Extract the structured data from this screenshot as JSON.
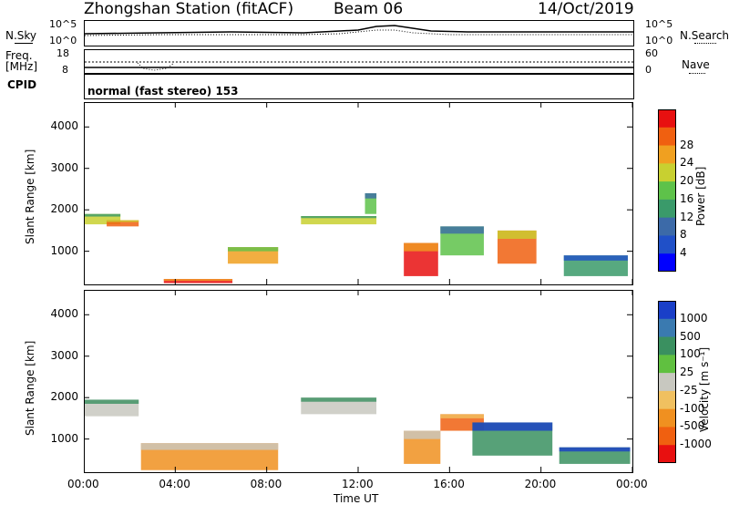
{
  "header": {
    "station": "Zhongshan Station (fitACF)",
    "beam": "Beam 06",
    "date": "14/Oct/2019"
  },
  "noise_panel": {
    "left_label": "N.Sky",
    "left_top_tick": "10^5",
    "left_bottom_tick": "10^0",
    "right_label": "N.Search",
    "right_top_tick": "10^5",
    "right_bottom_tick": "10^0"
  },
  "freq_panel": {
    "left_label_1": "Freq.",
    "left_label_2": "[MHz]",
    "left_top_tick": "18",
    "left_bottom_tick": "8",
    "right_label": "Nave",
    "right_top_tick": "60",
    "right_bottom_tick": "0"
  },
  "cpid": {
    "label": "CPID",
    "mode": "normal (fast stereo) 153"
  },
  "chart_data": [
    {
      "type": "heatmap",
      "name": "power",
      "ylabel": "Slant Range [km]",
      "xlabel": "",
      "x_ticks": [
        "00:00",
        "04:00",
        "08:00",
        "12:00",
        "16:00",
        "20:00",
        "00:00"
      ],
      "y_ticks": [
        1000,
        2000,
        3000,
        4000
      ],
      "ylim": [
        200,
        4600
      ],
      "xlim_hours": [
        0,
        24
      ],
      "colorbar": {
        "label": "Power [dB]",
        "ticks": [
          "4",
          "8",
          "12",
          "16",
          "20",
          "24",
          "28"
        ],
        "colors": [
          "#0000ff",
          "#2050c8",
          "#3c6aa8",
          "#3a9a6a",
          "#5ec24a",
          "#c8d030",
          "#f0a020",
          "#f06010",
          "#e81010"
        ]
      },
      "regions": [
        {
          "t0": 0.0,
          "t1": 1.6,
          "r0": 1650,
          "r1": 1900,
          "level": 5
        },
        {
          "t0": 1.0,
          "t1": 2.4,
          "r0": 1600,
          "r1": 1750,
          "level": 7
        },
        {
          "t0": 3.5,
          "t1": 6.5,
          "r0": 230,
          "r1": 330,
          "level": 8
        },
        {
          "t0": 6.3,
          "t1": 8.5,
          "r0": 700,
          "r1": 1100,
          "level": 6
        },
        {
          "t0": 9.5,
          "t1": 12.8,
          "r0": 1650,
          "r1": 1850,
          "level": 5
        },
        {
          "t0": 12.3,
          "t1": 12.8,
          "r0": 1900,
          "r1": 2400,
          "level": 4
        },
        {
          "t0": 14.0,
          "t1": 15.5,
          "r0": 400,
          "r1": 1200,
          "level": 8
        },
        {
          "t0": 15.6,
          "t1": 17.5,
          "r0": 900,
          "r1": 1600,
          "level": 4
        },
        {
          "t0": 18.1,
          "t1": 19.8,
          "r0": 700,
          "r1": 1500,
          "level": 7
        },
        {
          "t0": 21.0,
          "t1": 23.8,
          "r0": 400,
          "r1": 900,
          "level": 3
        }
      ]
    },
    {
      "type": "heatmap",
      "name": "velocity",
      "ylabel": "Slant Range [km]",
      "xlabel": "Time UT",
      "x_ticks": [
        "00:00",
        "04:00",
        "08:00",
        "12:00",
        "16:00",
        "20:00",
        "00:00"
      ],
      "y_ticks": [
        1000,
        2000,
        3000,
        4000
      ],
      "ylim": [
        200,
        4600
      ],
      "xlim_hours": [
        0,
        24
      ],
      "colorbar": {
        "label": "Velocity [m s⁻¹]",
        "ticks": [
          "1000",
          "500",
          "100",
          "25",
          "-25",
          "-100",
          "-500",
          "-1000"
        ],
        "colors": [
          "#1a3fc8",
          "#3a7ab0",
          "#3a9060",
          "#60c040",
          "#c8c8c0",
          "#f0c060",
          "#f09020",
          "#f06010",
          "#e81010"
        ]
      },
      "regions": [
        {
          "t0": 0.0,
          "t1": 2.4,
          "r0": 1550,
          "r1": 1950,
          "level": 4
        },
        {
          "t0": 2.5,
          "t1": 8.5,
          "r0": 250,
          "r1": 900,
          "level": 6
        },
        {
          "t0": 9.5,
          "t1": 12.8,
          "r0": 1600,
          "r1": 2000,
          "level": 4
        },
        {
          "t0": 14.0,
          "t1": 15.6,
          "r0": 400,
          "r1": 1200,
          "level": 6
        },
        {
          "t0": 15.6,
          "t1": 17.5,
          "r0": 1200,
          "r1": 1600,
          "level": 7
        },
        {
          "t0": 17.0,
          "t1": 20.5,
          "r0": 600,
          "r1": 1400,
          "level": 2
        },
        {
          "t0": 20.8,
          "t1": 23.9,
          "r0": 400,
          "r1": 800,
          "level": 2
        }
      ]
    }
  ]
}
